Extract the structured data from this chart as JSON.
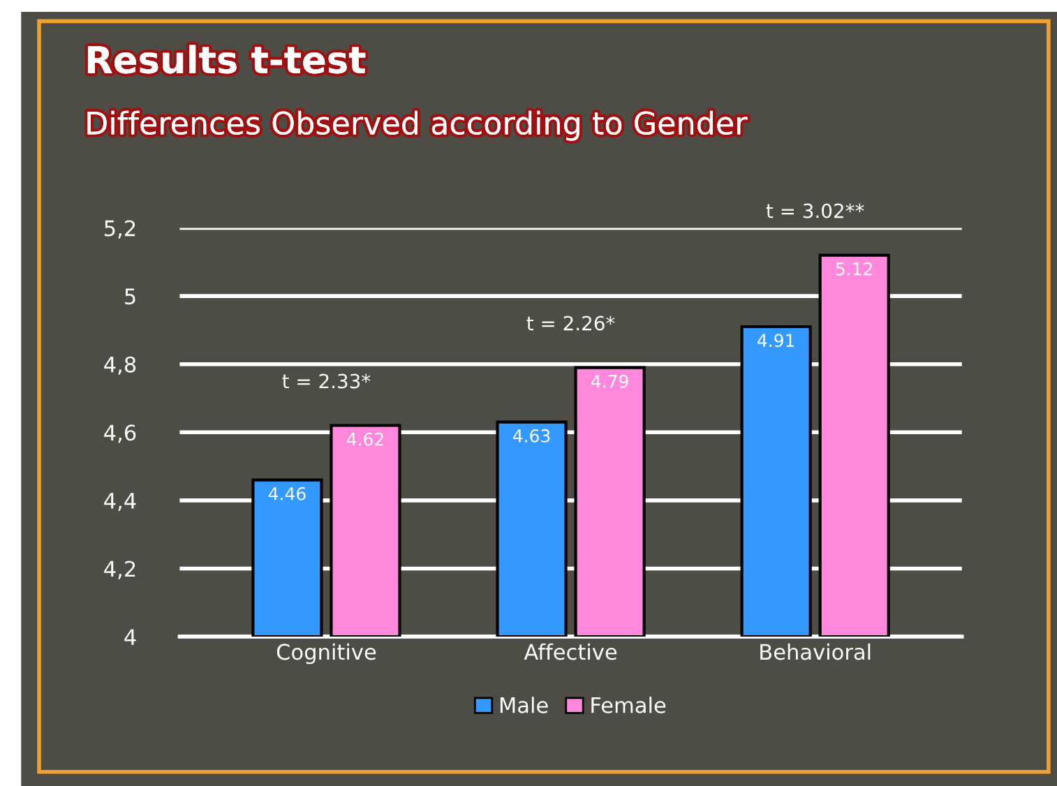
{
  "chart_data": {
    "type": "bar",
    "title": "Results t-test",
    "subtitle": "Differences Observed according to Gender",
    "categories": [
      "Cognitive",
      "Affective",
      "Behavioral"
    ],
    "series": [
      {
        "name": "Male",
        "color": "#3399ff",
        "values": [
          4.46,
          4.63,
          4.91
        ]
      },
      {
        "name": "Female",
        "color": "#ff88dd",
        "values": [
          4.62,
          4.79,
          5.12
        ]
      }
    ],
    "ylim": [
      4,
      5.2
    ],
    "yticks": [
      4,
      {
        "value": 4.2,
        "label": "4,2"
      },
      {
        "value": 4.4,
        "label": "4,4"
      },
      {
        "value": 4.6,
        "label": "4,6"
      },
      {
        "value": 4.8,
        "label": "4,8"
      },
      5,
      {
        "value": 5.2,
        "label": "5,2"
      }
    ],
    "grid": "y",
    "legend": "bottom",
    "data_labels": true,
    "annotations": [
      "t = 2.33*",
      "t = 2.26*",
      "t = 3.02**"
    ]
  }
}
